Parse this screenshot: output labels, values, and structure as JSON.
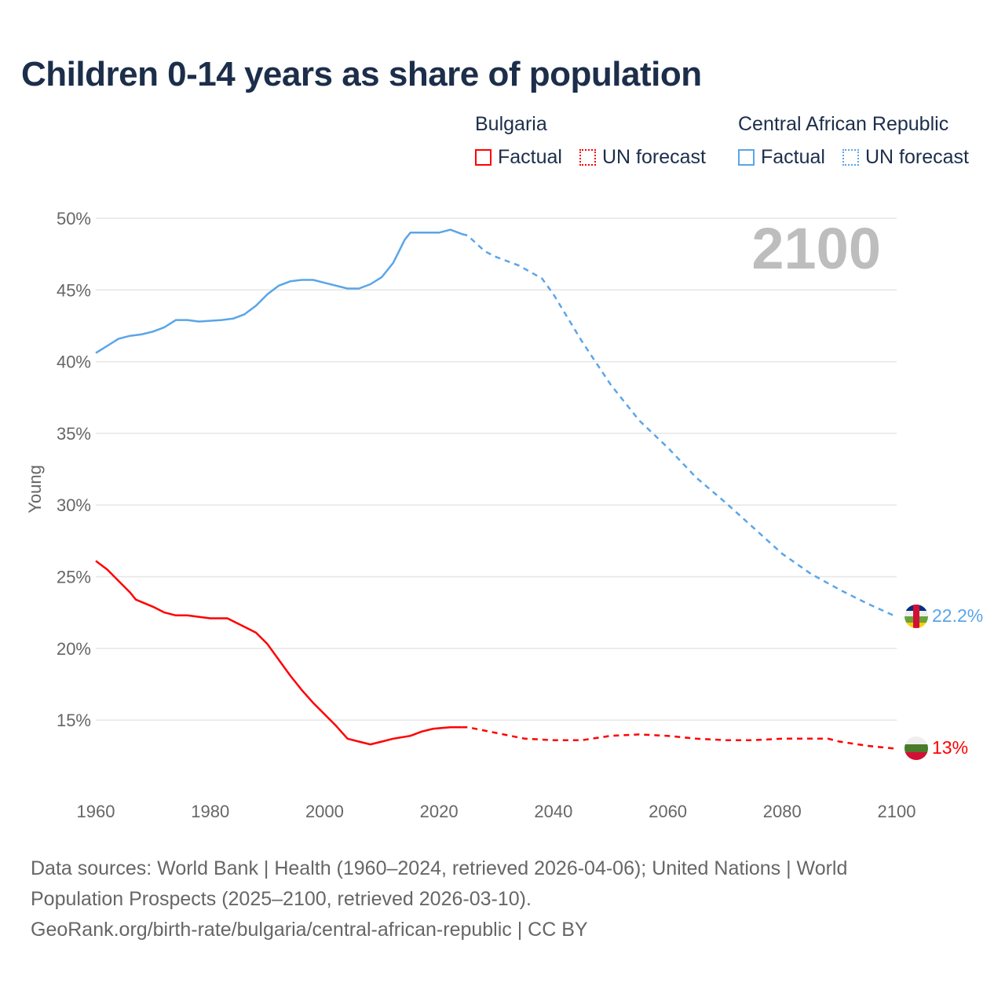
{
  "title": "Children 0-14 years as share of population",
  "legend": {
    "groups": [
      {
        "country": "Bulgaria",
        "factual": "Factual",
        "forecast": "UN forecast",
        "color": "#ff0000"
      },
      {
        "country": "Central African Republic",
        "factual": "Factual",
        "forecast": "UN forecast",
        "color": "#5aa5e8"
      }
    ]
  },
  "year_label": "2100",
  "footer": {
    "line1": "Data sources: World Bank | Health (1960–2024, retrieved 2026-04-06); United Nations | World",
    "line2": "Population Prospects (2025–2100, retrieved 2026-03-10).",
    "line3": "GeoRank.org/birth-rate/bulgaria/central-african-republic | CC BY"
  },
  "chart_data": {
    "type": "line",
    "title": "Children 0-14 years as share of population",
    "xlabel": "",
    "ylabel": "Young",
    "xlim": [
      1960,
      2100
    ],
    "ylim": [
      10,
      50
    ],
    "xticks": [
      "1960",
      "1980",
      "2000",
      "2020",
      "2040",
      "2060",
      "2080",
      "2100"
    ],
    "yticks": [
      "15%",
      "20%",
      "25%",
      "30%",
      "35%",
      "40%",
      "45%",
      "50%"
    ],
    "grid": true,
    "series": [
      {
        "name": "Central African Republic",
        "color": "#5aa5e8",
        "end_label": "22.2%",
        "factual": [
          [
            1960,
            40.6
          ],
          [
            1962,
            41.1
          ],
          [
            1964,
            41.6
          ],
          [
            1966,
            41.8
          ],
          [
            1968,
            41.9
          ],
          [
            1970,
            42.1
          ],
          [
            1972,
            42.4
          ],
          [
            1974,
            42.9
          ],
          [
            1976,
            42.9
          ],
          [
            1978,
            42.8
          ],
          [
            1982,
            42.9
          ],
          [
            1984,
            43.0
          ],
          [
            1986,
            43.3
          ],
          [
            1988,
            43.9
          ],
          [
            1990,
            44.7
          ],
          [
            1992,
            45.3
          ],
          [
            1994,
            45.6
          ],
          [
            1996,
            45.7
          ],
          [
            1998,
            45.7
          ],
          [
            2000,
            45.5
          ],
          [
            2004,
            45.1
          ],
          [
            2006,
            45.1
          ],
          [
            2008,
            45.4
          ],
          [
            2010,
            45.9
          ],
          [
            2012,
            46.9
          ],
          [
            2014,
            48.5
          ],
          [
            2015,
            49.0
          ],
          [
            2018,
            49.0
          ],
          [
            2020,
            49.0
          ],
          [
            2022,
            49.2
          ],
          [
            2024,
            48.9
          ]
        ],
        "forecast": [
          [
            2024,
            48.9
          ],
          [
            2025,
            48.8
          ],
          [
            2028,
            47.7
          ],
          [
            2030,
            47.3
          ],
          [
            2034,
            46.7
          ],
          [
            2038,
            45.8
          ],
          [
            2040,
            44.7
          ],
          [
            2045,
            41.4
          ],
          [
            2050,
            38.4
          ],
          [
            2055,
            35.9
          ],
          [
            2060,
            34.0
          ],
          [
            2065,
            31.9
          ],
          [
            2070,
            30.2
          ],
          [
            2075,
            28.4
          ],
          [
            2080,
            26.6
          ],
          [
            2085,
            25.2
          ],
          [
            2090,
            24.1
          ],
          [
            2095,
            23.1
          ],
          [
            2100,
            22.2
          ]
        ]
      },
      {
        "name": "Bulgaria",
        "color": "#ff0000",
        "end_label": "13%",
        "factual": [
          [
            1960,
            26.1
          ],
          [
            1962,
            25.5
          ],
          [
            1964,
            24.7
          ],
          [
            1966,
            23.9
          ],
          [
            1967,
            23.4
          ],
          [
            1970,
            22.9
          ],
          [
            1972,
            22.5
          ],
          [
            1974,
            22.3
          ],
          [
            1976,
            22.3
          ],
          [
            1978,
            22.2
          ],
          [
            1980,
            22.1
          ],
          [
            1983,
            22.1
          ],
          [
            1986,
            21.5
          ],
          [
            1988,
            21.1
          ],
          [
            1990,
            20.3
          ],
          [
            1992,
            19.2
          ],
          [
            1994,
            18.1
          ],
          [
            1996,
            17.1
          ],
          [
            1998,
            16.2
          ],
          [
            2000,
            15.4
          ],
          [
            2002,
            14.6
          ],
          [
            2004,
            13.7
          ],
          [
            2006,
            13.5
          ],
          [
            2008,
            13.3
          ],
          [
            2010,
            13.5
          ],
          [
            2012,
            13.7
          ],
          [
            2015,
            13.9
          ],
          [
            2017,
            14.2
          ],
          [
            2019,
            14.4
          ],
          [
            2022,
            14.5
          ],
          [
            2024,
            14.5
          ]
        ],
        "forecast": [
          [
            2024,
            14.5
          ],
          [
            2025,
            14.5
          ],
          [
            2030,
            14.1
          ],
          [
            2035,
            13.7
          ],
          [
            2040,
            13.6
          ],
          [
            2045,
            13.6
          ],
          [
            2050,
            13.9
          ],
          [
            2055,
            14.0
          ],
          [
            2060,
            13.9
          ],
          [
            2065,
            13.7
          ],
          [
            2070,
            13.6
          ],
          [
            2075,
            13.6
          ],
          [
            2080,
            13.7
          ],
          [
            2088,
            13.7
          ],
          [
            2090,
            13.5
          ],
          [
            2095,
            13.2
          ],
          [
            2100,
            13.0
          ]
        ]
      }
    ]
  }
}
